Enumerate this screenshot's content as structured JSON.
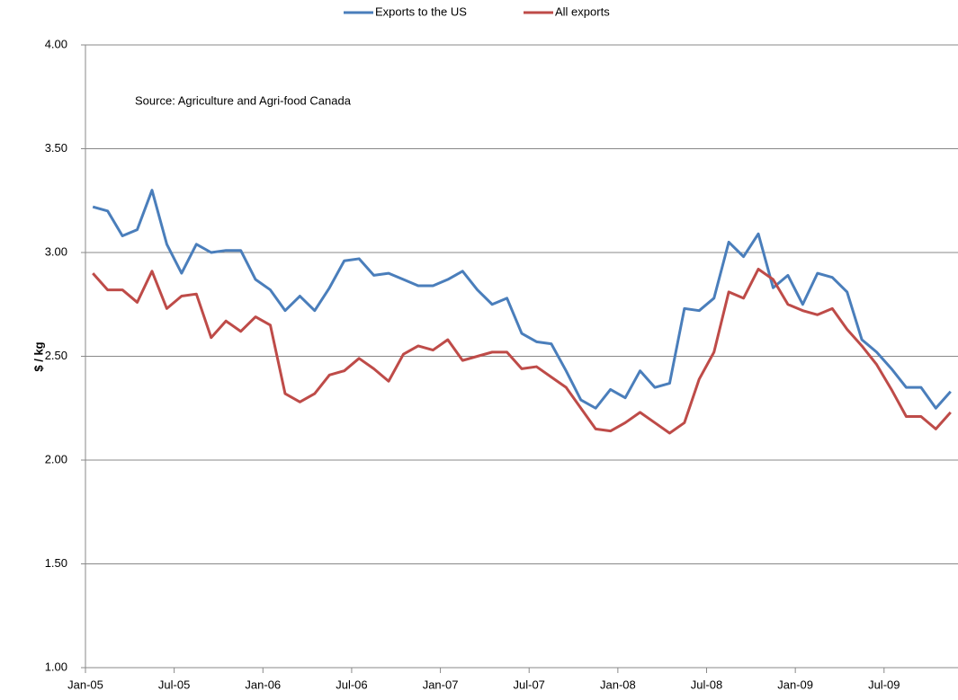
{
  "chart_data": {
    "type": "line",
    "annotation": "Source: Agriculture and Agri-food Canada",
    "y_label": "$ / kg",
    "categories": [
      "Jan-05",
      null,
      null,
      null,
      null,
      null,
      "Jul-05",
      null,
      null,
      null,
      null,
      null,
      "Jan-06",
      null,
      null,
      null,
      null,
      null,
      "Jul-06",
      null,
      null,
      null,
      null,
      null,
      "Jan-07",
      null,
      null,
      null,
      null,
      null,
      "Jul-07",
      null,
      null,
      null,
      null,
      null,
      "Jan-08",
      null,
      null,
      null,
      null,
      null,
      "Jul-08",
      null,
      null,
      null,
      null,
      null,
      "Jan-09",
      null,
      null,
      null,
      null,
      null,
      "Jul-09",
      null,
      null,
      null,
      null
    ],
    "series": [
      {
        "name": "Exports to the US",
        "color": "#4a7ebb",
        "values": [
          3.22,
          3.2,
          3.08,
          3.11,
          3.3,
          3.04,
          2.9,
          3.04,
          3.0,
          3.01,
          3.01,
          2.87,
          2.82,
          2.72,
          2.79,
          2.72,
          2.83,
          2.96,
          2.97,
          2.89,
          2.9,
          2.87,
          2.84,
          2.84,
          2.87,
          2.91,
          2.82,
          2.75,
          2.78,
          2.61,
          2.57,
          2.56,
          2.43,
          2.29,
          2.25,
          2.34,
          2.3,
          2.43,
          2.35,
          2.37,
          2.73,
          2.72,
          2.78,
          3.05,
          2.98,
          3.09,
          2.83,
          2.89,
          2.75,
          2.9,
          2.88,
          2.81,
          2.58,
          2.52,
          2.44,
          2.35,
          2.35,
          2.25,
          2.33
        ]
      },
      {
        "name": "All exports",
        "color": "#be4b48",
        "values": [
          2.9,
          2.82,
          2.82,
          2.76,
          2.91,
          2.73,
          2.79,
          2.8,
          2.59,
          2.67,
          2.62,
          2.69,
          2.65,
          2.32,
          2.28,
          2.32,
          2.41,
          2.43,
          2.49,
          2.44,
          2.38,
          2.51,
          2.55,
          2.53,
          2.58,
          2.48,
          2.5,
          2.52,
          2.52,
          2.44,
          2.45,
          2.4,
          2.35,
          2.25,
          2.15,
          2.14,
          2.18,
          2.23,
          2.18,
          2.13,
          2.18,
          2.39,
          2.52,
          2.81,
          2.78,
          2.92,
          2.87,
          2.75,
          2.72,
          2.7,
          2.73,
          2.63,
          2.55,
          2.46,
          2.34,
          2.21,
          2.21,
          2.15,
          2.23
        ]
      }
    ],
    "ylim": [
      1,
      4
    ],
    "yticks": [
      {
        "value": 1,
        "label": "1.00"
      },
      {
        "value": 1.5,
        "label": "1.50"
      },
      {
        "value": 2,
        "label": "2.00"
      },
      {
        "value": 2.5,
        "label": "2.50"
      },
      {
        "value": 3,
        "label": "3.00"
      },
      {
        "value": 3.5,
        "label": "3.50"
      },
      {
        "value": 4,
        "label": "4.00"
      }
    ],
    "grid": true,
    "legend_position": "top"
  }
}
